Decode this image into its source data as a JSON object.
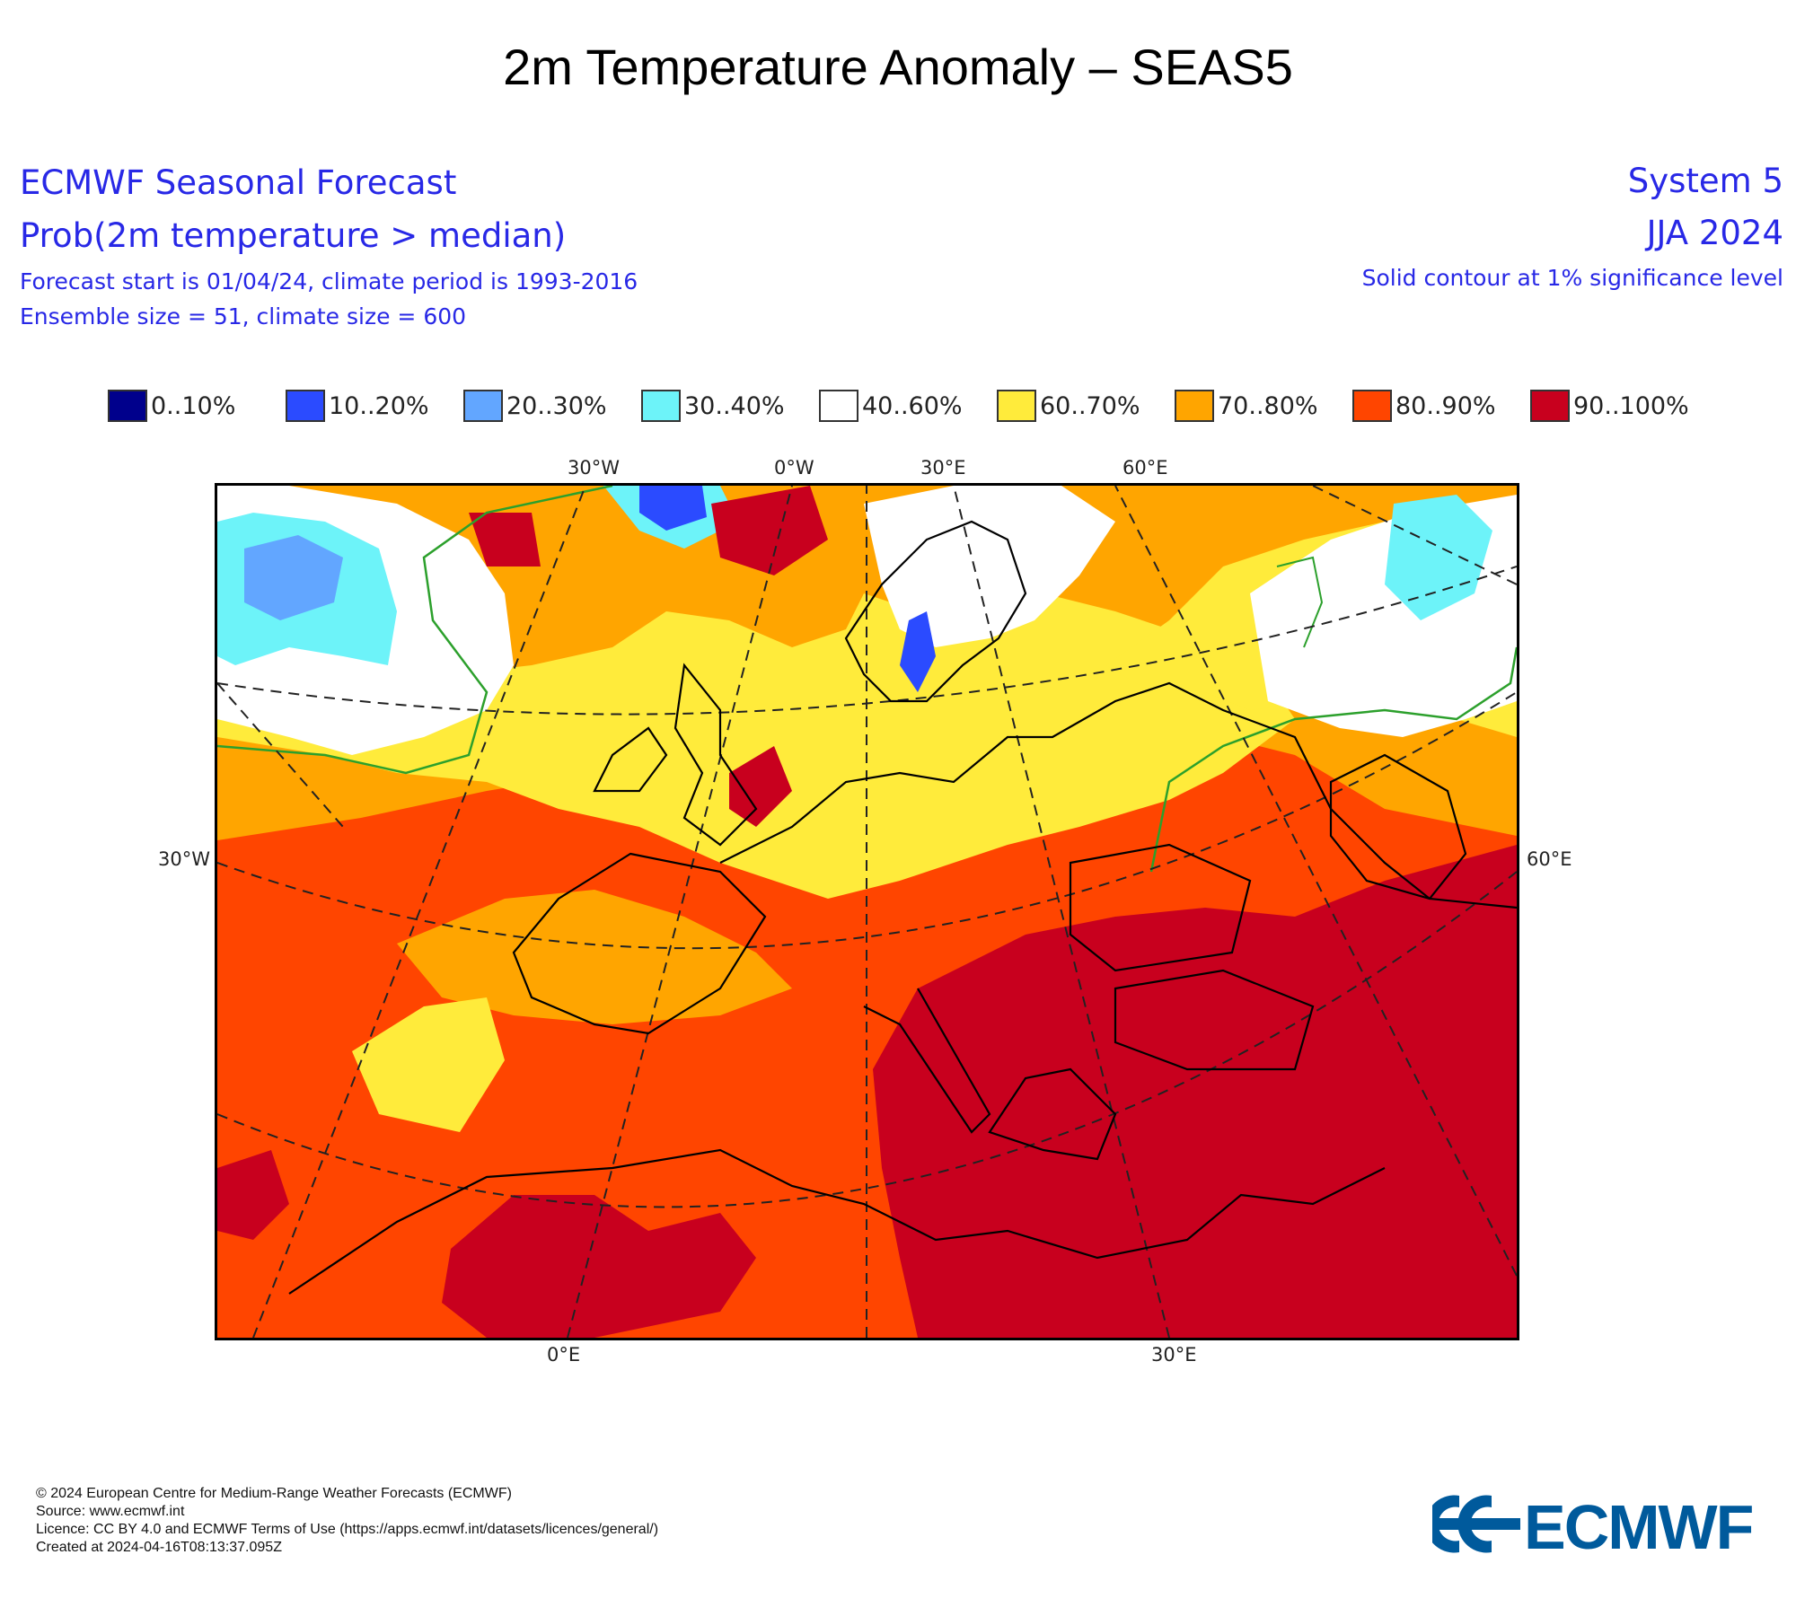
{
  "title": "2m Temperature Anomaly – SEAS5",
  "header": {
    "left_line1": "ECMWF Seasonal Forecast",
    "left_line2": "Prob(2m temperature > median)",
    "left_line3": "Forecast start is 01/04/24, climate period is 1993-2016",
    "left_line4": "Ensemble size = 51, climate size = 600",
    "right_line1": "System 5",
    "right_line2": "JJA 2024",
    "right_line3": "Solid contour at 1% significance level"
  },
  "legend": [
    {
      "label": "0..10%",
      "color": "#00008c"
    },
    {
      "label": "10..20%",
      "color": "#2b4bff"
    },
    {
      "label": "20..30%",
      "color": "#62a6ff"
    },
    {
      "label": "30..40%",
      "color": "#6df3f9"
    },
    {
      "label": "40..60%",
      "color": "#ffffff"
    },
    {
      "label": "60..70%",
      "color": "#ffeb3b"
    },
    {
      "label": "70..80%",
      "color": "#ffa500"
    },
    {
      "label": "80..90%",
      "color": "#ff4500"
    },
    {
      "label": "90..100%",
      "color": "#c8001e"
    }
  ],
  "map": {
    "ticks_top": [
      "30°W",
      "0°W",
      "30°E",
      "60°E"
    ],
    "ticks_bottom": [
      "0°E",
      "30°E"
    ],
    "tick_left": "30°W",
    "tick_right": "60°E",
    "region": "Europe",
    "significance_contour_color": "#2ca02c"
  },
  "footer": {
    "line1": "© 2024 European Centre for Medium-Range Weather Forecasts (ECMWF)",
    "line2": "Source: www.ecmwf.int",
    "line3": "Licence: CC BY 4.0 and ECMWF Terms of Use (https://apps.ecmwf.int/datasets/licences/general/)",
    "line4": "Created at 2024-04-16T08:13:37.095Z"
  },
  "logo": {
    "text": "ECMWF",
    "color": "#005a9c"
  }
}
